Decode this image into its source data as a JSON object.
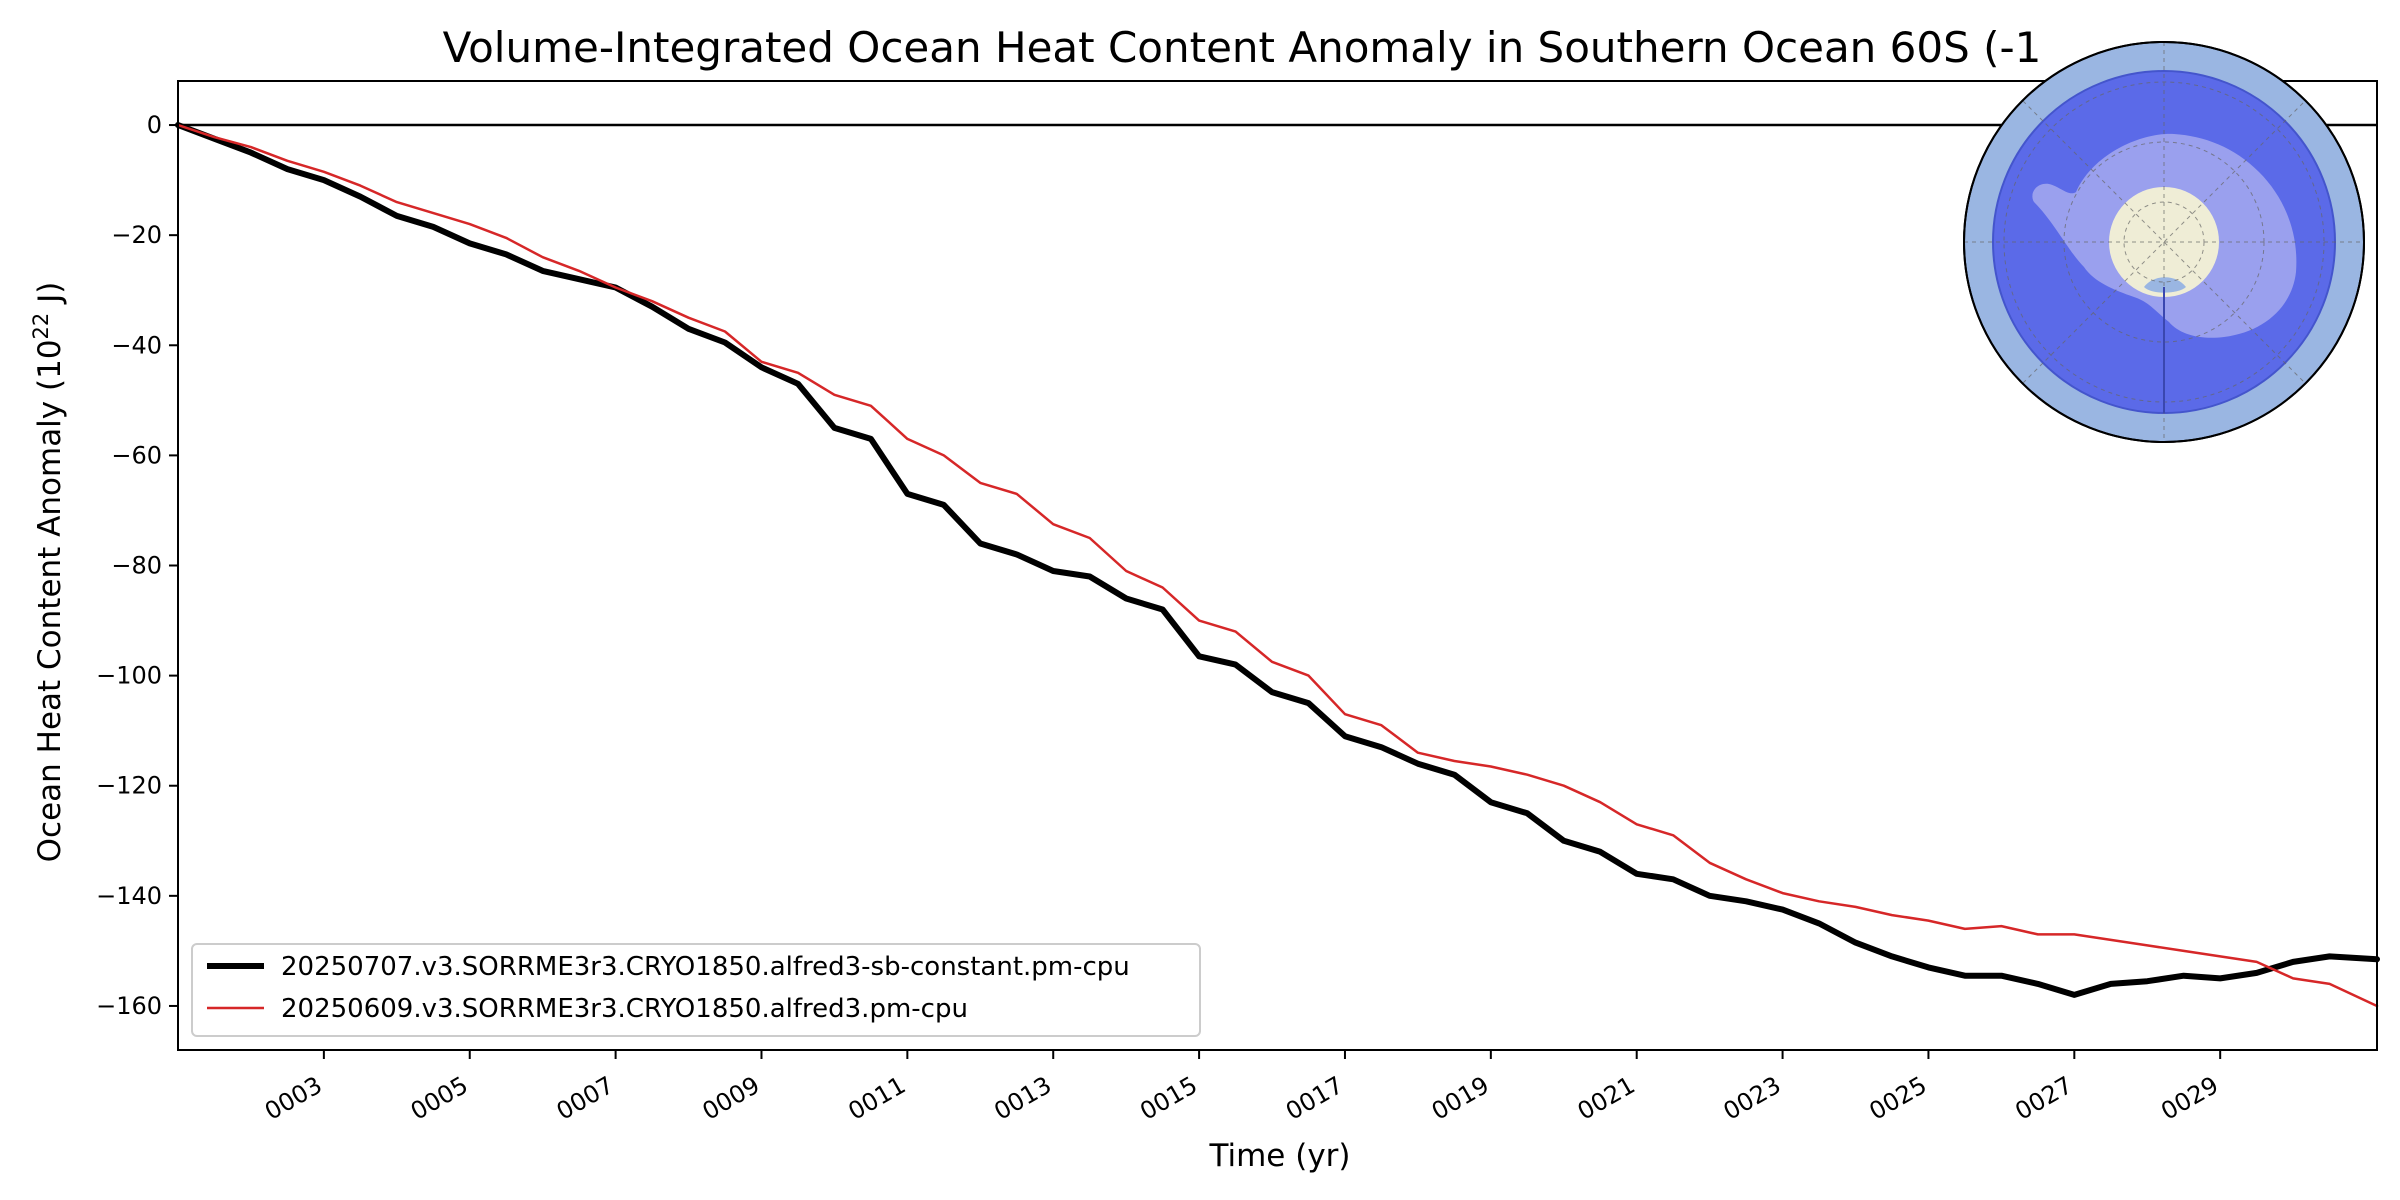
{
  "chart_data": {
    "type": "line",
    "title": "Volume-Integrated Ocean Heat Content Anomaly in Southern Ocean 60S (-1",
    "xlabel": "Time (yr)",
    "ylabel_prefix": "Ocean Heat Content Anomaly (10",
    "ylabel_exponent": "22",
    "ylabel_suffix": " J)",
    "xlim": [
      1,
      31.15
    ],
    "ylim": [
      -168,
      8
    ],
    "xticks": [
      {
        "value": 3,
        "label": "0003"
      },
      {
        "value": 5,
        "label": "0005"
      },
      {
        "value": 7,
        "label": "0007"
      },
      {
        "value": 9,
        "label": "0009"
      },
      {
        "value": 11,
        "label": "0011"
      },
      {
        "value": 13,
        "label": "0013"
      },
      {
        "value": 15,
        "label": "0015"
      },
      {
        "value": 17,
        "label": "0017"
      },
      {
        "value": 19,
        "label": "0019"
      },
      {
        "value": 21,
        "label": "0021"
      },
      {
        "value": 23,
        "label": "0023"
      },
      {
        "value": 25,
        "label": "0025"
      },
      {
        "value": 27,
        "label": "0027"
      },
      {
        "value": 29,
        "label": "0029"
      }
    ],
    "yticks": [
      {
        "value": 0,
        "label": "0"
      },
      {
        "value": -20,
        "label": "−20"
      },
      {
        "value": -40,
        "label": "−40"
      },
      {
        "value": -60,
        "label": "−60"
      },
      {
        "value": -80,
        "label": "−80"
      },
      {
        "value": -100,
        "label": "−100"
      },
      {
        "value": -120,
        "label": "−120"
      },
      {
        "value": -140,
        "label": "−140"
      },
      {
        "value": -160,
        "label": "−160"
      }
    ],
    "reference_line_y": 0,
    "legend_position": "lower-left",
    "grid": false,
    "series": [
      {
        "name": "20250707.v3.SORRME3r3.CRYO1850.alfred3-sb-constant.pm-cpu",
        "color": "#000000",
        "x": [
          1.0,
          1.5,
          2.0,
          2.5,
          3.0,
          3.5,
          4.0,
          4.5,
          5.0,
          5.5,
          6.0,
          6.5,
          7.0,
          7.5,
          8.0,
          8.5,
          9.0,
          9.5,
          10.0,
          10.5,
          11.0,
          11.5,
          12.0,
          12.5,
          13.0,
          13.5,
          14.0,
          14.5,
          15.0,
          15.5,
          16.0,
          16.5,
          17.0,
          17.5,
          18.0,
          18.5,
          19.0,
          19.5,
          20.0,
          20.5,
          21.0,
          21.5,
          22.0,
          22.5,
          23.0,
          23.5,
          24.0,
          24.5,
          25.0,
          25.5,
          26.0,
          26.5,
          27.0,
          27.5,
          28.0,
          28.5,
          29.0,
          29.5,
          30.0,
          30.5,
          31.15
        ],
        "y": [
          0,
          -2.5,
          -5,
          -8,
          -10,
          -13,
          -16.5,
          -18.5,
          -21.5,
          -23.5,
          -26.5,
          -28,
          -29.5,
          -33,
          -37,
          -39.5,
          -44,
          -47,
          -55,
          -57,
          -67,
          -69,
          -76,
          -78,
          -81,
          -82,
          -86,
          -88,
          -96.5,
          -98,
          -103,
          -105,
          -111,
          -113,
          -116,
          -118,
          -123,
          -125,
          -130,
          -132,
          -136,
          -137,
          -140,
          -141,
          -142.5,
          -145,
          -148.5,
          -151,
          -153,
          -154.5,
          -154.5,
          -156,
          -158,
          -156,
          -155.5,
          -154.5,
          -155,
          -154,
          -152,
          -151,
          -151.5
        ]
      },
      {
        "name": "20250609.v3.SORRME3r3.CRYO1850.alfred3.pm-cpu",
        "color": "#d62728",
        "x": [
          1.0,
          1.5,
          2.0,
          2.5,
          3.0,
          3.5,
          4.0,
          4.5,
          5.0,
          5.5,
          6.0,
          6.5,
          7.0,
          7.5,
          8.0,
          8.5,
          9.0,
          9.5,
          10.0,
          10.5,
          11.0,
          11.5,
          12.0,
          12.5,
          13.0,
          13.5,
          14.0,
          14.5,
          15.0,
          15.5,
          16.0,
          16.5,
          17.0,
          17.5,
          18.0,
          18.5,
          19.0,
          19.5,
          20.0,
          20.5,
          21.0,
          21.5,
          22.0,
          22.5,
          23.0,
          23.5,
          24.0,
          24.5,
          25.0,
          25.5,
          26.0,
          26.5,
          27.0,
          27.5,
          28.0,
          28.5,
          29.0,
          29.5,
          30.0,
          30.5,
          31.15
        ],
        "y": [
          0,
          -2.2,
          -4,
          -6.5,
          -8.5,
          -11,
          -14,
          -16,
          -18,
          -20.5,
          -24,
          -26.5,
          -29.5,
          -32,
          -35,
          -37.5,
          -43,
          -45,
          -49,
          -51,
          -57,
          -60,
          -65,
          -67,
          -72.5,
          -75,
          -81,
          -84,
          -90,
          -92,
          -97.5,
          -100,
          -107,
          -109,
          -114,
          -115.5,
          -116.5,
          -118,
          -120,
          -123,
          -127,
          -129,
          -134,
          -137,
          -139.5,
          -141,
          -142,
          -143.5,
          -144.5,
          -146,
          -145.5,
          -147,
          -147,
          -148,
          -149,
          -150,
          -151,
          -152,
          -155,
          -156,
          -160
        ]
      }
    ]
  },
  "inset_map": {
    "description_colors": {
      "outer_ocean": "#9ab6e2",
      "region": "#5b6ae8",
      "land": "#9aa0ee",
      "pole": "#efedd6"
    }
  }
}
